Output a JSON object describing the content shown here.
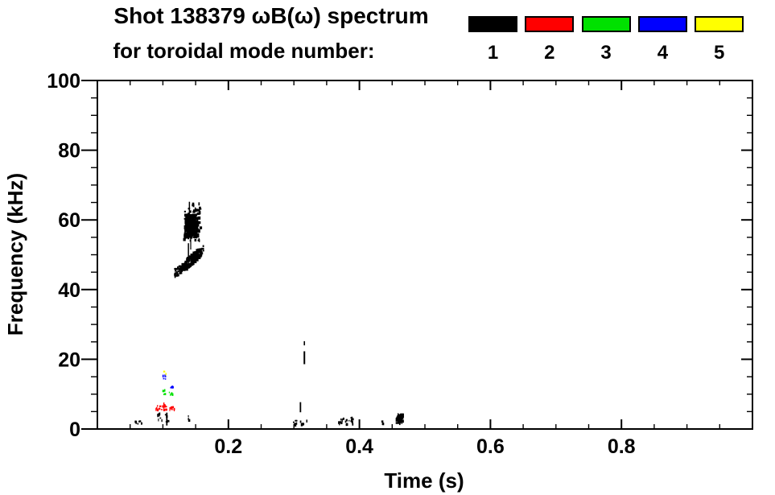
{
  "title": {
    "line1": "Shot 138379 ωB(ω) spectrum",
    "line2": "for toroidal mode number:"
  },
  "legend": {
    "items": [
      {
        "label": "1",
        "color": "#000000"
      },
      {
        "label": "2",
        "color": "#ff0000"
      },
      {
        "label": "3",
        "color": "#00e100"
      },
      {
        "label": "4",
        "color": "#0000ff"
      },
      {
        "label": "5",
        "color": "#ffff00"
      }
    ]
  },
  "chart_data": {
    "type": "scatter",
    "title": "Shot 138379 ωB(ω) spectrum for toroidal mode number: 1 2 3 4 5",
    "xlabel": "Time (s)",
    "ylabel": "Frequency (kHz)",
    "xlim": [
      0,
      1.0
    ],
    "ylim": [
      0,
      100
    ],
    "grid": false,
    "legend_position": "top-right",
    "x_major_ticks": [
      0.2,
      0.4,
      0.6,
      0.8
    ],
    "x_major_labels": [
      "0.2",
      "0.4",
      "0.6",
      "0.8"
    ],
    "x_minor_step": 0.05,
    "y_major_ticks": [
      0,
      20,
      40,
      60,
      80,
      100
    ],
    "y_major_labels": [
      "0",
      "20",
      "40",
      "60",
      "80",
      "100"
    ],
    "y_minor_step": 5,
    "series": [
      {
        "name": "toroidal mode n=1",
        "color": "#000000",
        "features": [
          {
            "type": "blob",
            "t": [
              0.132,
              0.16
            ],
            "f": [
              54.0,
              65.0
            ],
            "core_t": [
              0.1345,
              0.1535
            ],
            "core_f": [
              55.0,
              61.5
            ],
            "count": 150
          },
          {
            "type": "vdash",
            "t": 0.1405,
            "f": [
              61.0,
              65.2
            ],
            "w": 1.5
          },
          {
            "type": "vdash",
            "t": 0.1425,
            "f": [
              51.5,
              55.5
            ],
            "w": 1.2
          },
          {
            "type": "streak",
            "t": [
              0.118,
              0.162
            ],
            "f": [
              44.5,
              51.5
            ],
            "spread": 1.4,
            "count": 120
          },
          {
            "type": "vdash",
            "t": 0.139,
            "f": [
              47.0,
              53.3
            ],
            "w": 1.5
          },
          {
            "type": "specks",
            "t": [
              0.117,
              0.123
            ],
            "f": [
              44.0,
              45.5
            ],
            "count": 6
          },
          {
            "type": "vdash",
            "t": 0.316,
            "f": [
              24.0,
              25.2
            ],
            "w": 1.6
          },
          {
            "type": "vdash",
            "t": 0.316,
            "f": [
              18.6,
              22.3
            ],
            "w": 2.0
          },
          {
            "type": "vdash",
            "t": 0.31,
            "f": [
              4.8,
              7.7
            ],
            "w": 1.8
          },
          {
            "type": "specks",
            "t": [
              0.057,
              0.067
            ],
            "f": [
              1.5,
              2.7
            ],
            "count": 9
          },
          {
            "type": "specks",
            "t": [
              0.091,
              0.098
            ],
            "f": [
              2.6,
              4.8
            ],
            "count": 9
          },
          {
            "type": "vdash",
            "t": 0.106,
            "f": [
              1.0,
              4.7
            ],
            "w": 1.8
          },
          {
            "type": "specks",
            "t": [
              0.103,
              0.11
            ],
            "f": [
              2.0,
              4.5
            ],
            "count": 6
          },
          {
            "type": "specks",
            "t": [
              0.135,
              0.139
            ],
            "f": [
              2.8,
              4.0
            ],
            "count": 4
          },
          {
            "type": "specks",
            "t": [
              0.296,
              0.304
            ],
            "f": [
              1.2,
              2.6
            ],
            "count": 7
          },
          {
            "type": "specks",
            "t": [
              0.309,
              0.32
            ],
            "f": [
              1.2,
              2.8
            ],
            "count": 8
          },
          {
            "type": "specks",
            "t": [
              0.364,
              0.375
            ],
            "f": [
              1.6,
              3.4
            ],
            "count": 11
          },
          {
            "type": "specks",
            "t": [
              0.377,
              0.392
            ],
            "f": [
              1.6,
              3.6
            ],
            "count": 13
          },
          {
            "type": "specks",
            "t": [
              0.43,
              0.435
            ],
            "f": [
              1.8,
              2.9
            ],
            "count": 3
          },
          {
            "type": "blob",
            "t": [
              0.456,
              0.468
            ],
            "f": [
              1.2,
              4.6
            ],
            "core_t": [
              0.458,
              0.466
            ],
            "core_f": [
              1.6,
              4.2
            ],
            "count": 28
          }
        ]
      },
      {
        "name": "toroidal mode n=2",
        "color": "#ff0000",
        "features": [
          {
            "type": "specks",
            "t": [
              0.088,
              0.095
            ],
            "f": [
              5.6,
              6.9
            ],
            "count": 9
          },
          {
            "type": "vdash",
            "t": 0.1015,
            "f": [
              5.8,
              7.6
            ],
            "w": 1.5
          },
          {
            "type": "specks",
            "t": [
              0.097,
              0.106
            ],
            "f": [
              5.6,
              7.2
            ],
            "count": 10
          },
          {
            "type": "specks",
            "t": [
              0.109,
              0.117
            ],
            "f": [
              5.6,
              6.6
            ],
            "count": 8
          }
        ]
      },
      {
        "name": "toroidal mode n=3",
        "color": "#00e100",
        "features": [
          {
            "type": "specks",
            "t": [
              0.098,
              0.103
            ],
            "f": [
              10.0,
              11.5
            ],
            "count": 6
          },
          {
            "type": "specks",
            "t": [
              0.109,
              0.114
            ],
            "f": [
              9.7,
              10.9
            ],
            "count": 5
          }
        ]
      },
      {
        "name": "toroidal mode n=4",
        "color": "#0000ff",
        "features": [
          {
            "type": "specks",
            "t": [
              0.099,
              0.104
            ],
            "f": [
              14.2,
              15.7
            ],
            "count": 5
          },
          {
            "type": "specks",
            "t": [
              0.11,
              0.115
            ],
            "f": [
              12.0,
              13.3
            ],
            "count": 5
          }
        ]
      },
      {
        "name": "toroidal mode n=5",
        "color": "#ffff00",
        "features": [
          {
            "type": "specks",
            "t": [
              0.1,
              0.104
            ],
            "f": [
              16.1,
              17.1
            ],
            "count": 4
          }
        ]
      }
    ]
  }
}
